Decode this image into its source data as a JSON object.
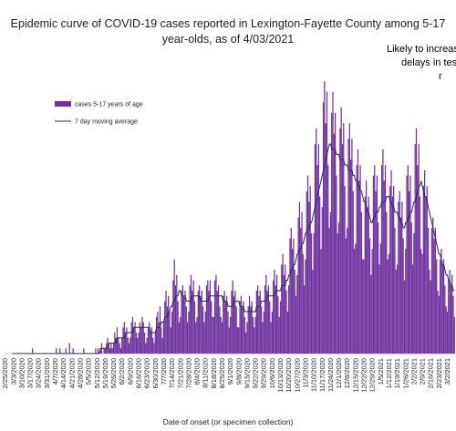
{
  "chart_data": {
    "type": "bar-line",
    "title_lines": [
      "Epidemic curve of COVID-19 cases reported in Lexington-Fayette County among 5-17",
      "year-olds, as of 4/03/2021"
    ],
    "x_label": "Date of onset (or specimen collection)",
    "annotation_lines": [
      "Likely to increas",
      "delays in tes",
      "r"
    ],
    "ylim": [
      0,
      55
    ],
    "categories": [
      "2/25/2020",
      null,
      null,
      null,
      null,
      null,
      null,
      "3/3/2020",
      null,
      null,
      null,
      null,
      null,
      null,
      "3/10/2020",
      null,
      null,
      null,
      null,
      null,
      null,
      "3/17/2020",
      null,
      null,
      null,
      null,
      null,
      null,
      "3/24/2020",
      null,
      null,
      null,
      null,
      null,
      null,
      "3/31/2020",
      null,
      null,
      null,
      null,
      null,
      null,
      "4/7/2020",
      null,
      null,
      null,
      null,
      null,
      null,
      "4/14/2020",
      null,
      null,
      null,
      null,
      null,
      null,
      "4/21/2020",
      null,
      null,
      null,
      null,
      null,
      null,
      "4/28/2020",
      null,
      null,
      null,
      null,
      null,
      null,
      "5/5/2020",
      null,
      null,
      null,
      null,
      null,
      null,
      "5/12/2020",
      null,
      null,
      null,
      null,
      null,
      null,
      "5/19/2020",
      null,
      null,
      null,
      null,
      null,
      null,
      "5/26/2020",
      null,
      null,
      null,
      null,
      null,
      null,
      "6/2/2020",
      null,
      null,
      null,
      null,
      null,
      null,
      "6/9/2020",
      null,
      null,
      null,
      null,
      null,
      null,
      "6/16/2020",
      null,
      null,
      null,
      null,
      null,
      null,
      "6/23/2020",
      null,
      null,
      null,
      null,
      null,
      null,
      "6/30/2020",
      null,
      null,
      null,
      null,
      null,
      null,
      "7/7/2020",
      null,
      null,
      null,
      null,
      null,
      null,
      "7/14/2020",
      null,
      null,
      null,
      null,
      null,
      null,
      "7/21/2020",
      null,
      null,
      null,
      null,
      null,
      null,
      "7/28/2020",
      null,
      null,
      null,
      null,
      null,
      null,
      "8/4/2020",
      null,
      null,
      null,
      null,
      null,
      null,
      "8/11/2020",
      null,
      null,
      null,
      null,
      null,
      null,
      "8/18/2020",
      null,
      null,
      null,
      null,
      null,
      null,
      "8/25/2020",
      null,
      null,
      null,
      null,
      null,
      null,
      "9/1/2020",
      null,
      null,
      null,
      null,
      null,
      null,
      "9/8/2020",
      null,
      null,
      null,
      null,
      null,
      null,
      "9/15/2020",
      null,
      null,
      null,
      null,
      null,
      null,
      "9/22/2020",
      null,
      null,
      null,
      null,
      null,
      null,
      "9/29/2020",
      null,
      null,
      null,
      null,
      null,
      null,
      "10/6/2020",
      null,
      null,
      null,
      null,
      null,
      null,
      "10/13/2020",
      null,
      null,
      null,
      null,
      null,
      null,
      "10/20/2020",
      null,
      null,
      null,
      null,
      null,
      null,
      "10/27/2020",
      null,
      null,
      null,
      null,
      null,
      null,
      "11/3/2020",
      null,
      null,
      null,
      null,
      null,
      null,
      "11/10/2020",
      null,
      null,
      null,
      null,
      null,
      null,
      "11/17/2020",
      null,
      null,
      null,
      null,
      null,
      null,
      "11/24/2020",
      null,
      null,
      null,
      null,
      null,
      null,
      "12/1/2020",
      null,
      null,
      null,
      null,
      null,
      null,
      "12/8/2020",
      null,
      null,
      null,
      null,
      null,
      null,
      "12/15/2020",
      null,
      null,
      null,
      null,
      null,
      null,
      "12/22/2020",
      null,
      null,
      null,
      null,
      null,
      null,
      "12/29/2020",
      null,
      null,
      null,
      null,
      null,
      null,
      "1/5/2021",
      null,
      null,
      null,
      null,
      null,
      null,
      "1/12/2021",
      null,
      null,
      null,
      null,
      null,
      null,
      "1/19/2021",
      null,
      null,
      null,
      null,
      null,
      null,
      "1/26/2021",
      null,
      null,
      null,
      null,
      null,
      null,
      "2/2/2021",
      null,
      null,
      null,
      null,
      null,
      null,
      "2/9/2021",
      null,
      null,
      null,
      null,
      null,
      null,
      "2/16/2021",
      null,
      null,
      null,
      null,
      null,
      null,
      "2/23/2021",
      null,
      null,
      null,
      null,
      null,
      null,
      "3/2/2021",
      null,
      null,
      null,
      null,
      null,
      null
    ],
    "series": [
      {
        "name": "cases 5-17 years of age",
        "type": "bar",
        "color": "#7030a0",
        "values": [
          0,
          0,
          0,
          0,
          0,
          0,
          0,
          0,
          0,
          0,
          0,
          0,
          0,
          0,
          0,
          0,
          0,
          0,
          0,
          0,
          0,
          0,
          0,
          1,
          0,
          0,
          0,
          0,
          0,
          0,
          0,
          0,
          0,
          0,
          0,
          0,
          0,
          0,
          0,
          0,
          0,
          0,
          0,
          1,
          0,
          0,
          1,
          0,
          0,
          0,
          0,
          1,
          0,
          0,
          2,
          0,
          0,
          1,
          0,
          0,
          0,
          0,
          0,
          0,
          0,
          0,
          1,
          0,
          0,
          0,
          0,
          0,
          0,
          0,
          0,
          0,
          1,
          0,
          1,
          0,
          1,
          2,
          0,
          1,
          1,
          2,
          3,
          2,
          1,
          2,
          1,
          2,
          4,
          3,
          5,
          3,
          2,
          1,
          3,
          5,
          6,
          4,
          5,
          3,
          2,
          3,
          6,
          7,
          5,
          6,
          4,
          3,
          4,
          6,
          5,
          7,
          6,
          4,
          2,
          3,
          5,
          6,
          4,
          5,
          3,
          2,
          4,
          7,
          8,
          6,
          9,
          5,
          3,
          6,
          10,
          12,
          9,
          11,
          8,
          5,
          8,
          14,
          18,
          13,
          15,
          10,
          6,
          7,
          12,
          13,
          11,
          12,
          9,
          6,
          8,
          13,
          15,
          12,
          14,
          10,
          6,
          7,
          12,
          13,
          11,
          12,
          9,
          6,
          8,
          13,
          14,
          12,
          14,
          10,
          7,
          7,
          14,
          15,
          12,
          13,
          9,
          7,
          6,
          11,
          12,
          10,
          11,
          8,
          5,
          7,
          12,
          14,
          11,
          12,
          9,
          5,
          5,
          10,
          11,
          9,
          10,
          7,
          4,
          6,
          9,
          11,
          9,
          10,
          7,
          5,
          7,
          12,
          13,
          11,
          12,
          9,
          6,
          8,
          13,
          15,
          12,
          13,
          10,
          6,
          8,
          14,
          16,
          13,
          15,
          11,
          7,
          10,
          17,
          19,
          15,
          17,
          12,
          8,
          13,
          22,
          24,
          20,
          22,
          16,
          11,
          15,
          26,
          29,
          24,
          27,
          19,
          13,
          18,
          31,
          34,
          29,
          32,
          23,
          16,
          23,
          40,
          43,
          36,
          40,
          30,
          20,
          28,
          48,
          52,
          44,
          50,
          36,
          24,
          27,
          46,
          50,
          42,
          46,
          34,
          23,
          25,
          43,
          47,
          40,
          44,
          32,
          22,
          24,
          41,
          44,
          37,
          41,
          31,
          20,
          21,
          36,
          39,
          33,
          36,
          27,
          18,
          18,
          30,
          33,
          28,
          30,
          22,
          15,
          20,
          34,
          36,
          31,
          34,
          25,
          17,
          21,
          36,
          39,
          33,
          36,
          27,
          18,
          19,
          32,
          35,
          30,
          32,
          24,
          16,
          17,
          29,
          31,
          26,
          29,
          22,
          14,
          20,
          34,
          36,
          31,
          34,
          25,
          17,
          23,
          40,
          43,
          36,
          40,
          30,
          20,
          19,
          32,
          35,
          30,
          32,
          24,
          16,
          14,
          24,
          26,
          22,
          24,
          18,
          12,
          11,
          18,
          20,
          17,
          18,
          13,
          9,
          8,
          14,
          16,
          13,
          15,
          11,
          7
        ]
      },
      {
        "name": "7 day moving average",
        "type": "line",
        "color": "#1f2d5c",
        "values": [
          null,
          null,
          null,
          null,
          null,
          null,
          0,
          0,
          0,
          0,
          0,
          0,
          0,
          0,
          0,
          0,
          0,
          0,
          0,
          0,
          0,
          0,
          0,
          0,
          0,
          0,
          0,
          0,
          0,
          0,
          0,
          0,
          0,
          0,
          0,
          0,
          0,
          0,
          0,
          0,
          0,
          0,
          0,
          0,
          0,
          0,
          0,
          0,
          0,
          0,
          0,
          0,
          0,
          0,
          0,
          0,
          0,
          0,
          0,
          0,
          0,
          0,
          0,
          0,
          0,
          0,
          0,
          0,
          0,
          0,
          0,
          0,
          0,
          0,
          0,
          0,
          0,
          0,
          0,
          0,
          1,
          1,
          1,
          1,
          1,
          1,
          1,
          2,
          2,
          2,
          2,
          2,
          2,
          2,
          3,
          3,
          3,
          3,
          3,
          3,
          3,
          4,
          4,
          4,
          4,
          4,
          4,
          4,
          5,
          5,
          5,
          5,
          5,
          5,
          5,
          5,
          5,
          5,
          5,
          5,
          5,
          5,
          4,
          4,
          4,
          4,
          4,
          5,
          5,
          5,
          5,
          6,
          6,
          6,
          7,
          7,
          7,
          8,
          8,
          9,
          9,
          10,
          10,
          11,
          11,
          11,
          12,
          12,
          11,
          11,
          11,
          11,
          10,
          10,
          10,
          10,
          10,
          11,
          11,
          11,
          11,
          11,
          11,
          11,
          10,
          10,
          10,
          10,
          10,
          10,
          10,
          11,
          11,
          11,
          11,
          11,
          11,
          11,
          11,
          11,
          11,
          11,
          11,
          10,
          10,
          10,
          10,
          9,
          9,
          9,
          9,
          9,
          10,
          10,
          10,
          10,
          10,
          9,
          9,
          9,
          9,
          8,
          8,
          8,
          8,
          8,
          8,
          8,
          8,
          8,
          8,
          9,
          9,
          9,
          9,
          10,
          10,
          10,
          10,
          10,
          11,
          11,
          11,
          11,
          11,
          11,
          11,
          12,
          12,
          12,
          12,
          12,
          13,
          13,
          13,
          13,
          14,
          14,
          15,
          15,
          16,
          16,
          17,
          17,
          18,
          19,
          19,
          20,
          20,
          21,
          21,
          22,
          23,
          23,
          24,
          24,
          25,
          25,
          26,
          27,
          28,
          29,
          30,
          31,
          32,
          33,
          34,
          35,
          36,
          37,
          38,
          39,
          40,
          40,
          39,
          39,
          39,
          39,
          38,
          38,
          38,
          37,
          37,
          37,
          37,
          36,
          36,
          36,
          35,
          35,
          35,
          35,
          34,
          34,
          33,
          33,
          32,
          32,
          31,
          31,
          30,
          29,
          29,
          28,
          27,
          27,
          26,
          25,
          25,
          26,
          26,
          27,
          27,
          27,
          28,
          28,
          29,
          29,
          29,
          29,
          30,
          30,
          30,
          29,
          29,
          28,
          28,
          27,
          27,
          27,
          26,
          26,
          25,
          25,
          24,
          24,
          25,
          25,
          26,
          26,
          27,
          27,
          28,
          29,
          29,
          30,
          31,
          32,
          32,
          33,
          32,
          31,
          30,
          30,
          29,
          28,
          27,
          26,
          25,
          24,
          23,
          22,
          21,
          20,
          19,
          19,
          18,
          17,
          17,
          16,
          15,
          15,
          14,
          14,
          13,
          13,
          12,
          12
        ]
      }
    ]
  }
}
